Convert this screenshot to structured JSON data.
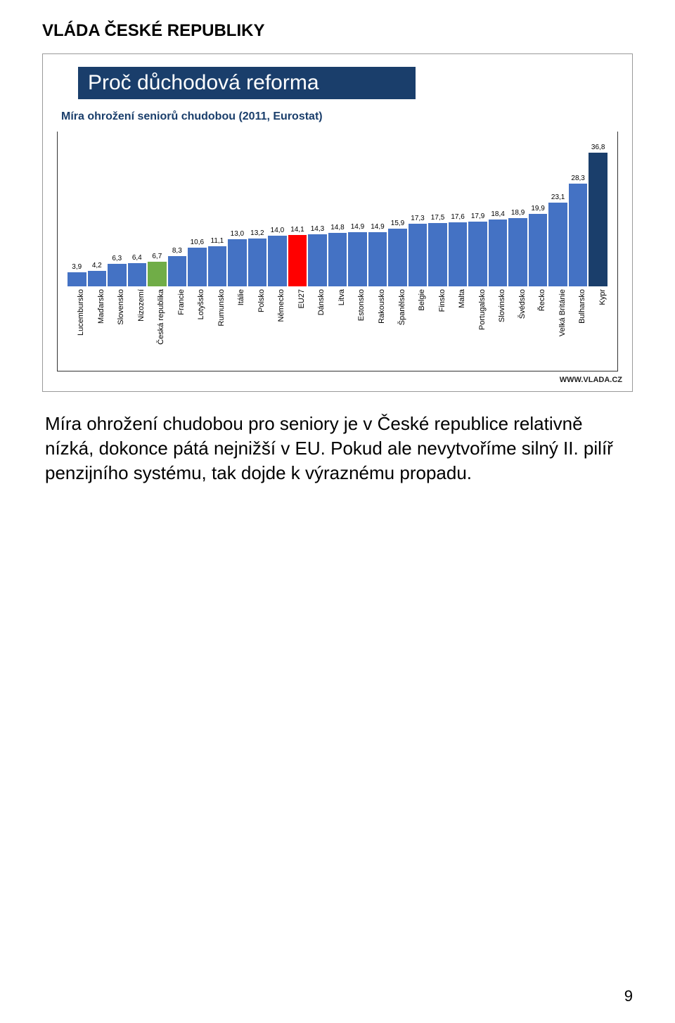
{
  "header": {
    "org": "VLÁDA ČESKÉ REPUBLIKY"
  },
  "subtitle": {
    "text": "Proč důchodová reforma",
    "bg_color": "#1a3e6b",
    "text_color": "#ffffff"
  },
  "chart": {
    "type": "bar",
    "title": "Míra ohrožení seniorů chudobou (2011, Eurostat)",
    "title_color": "#1a3e6b",
    "title_fontsize": 16,
    "background_color": "#ffffff",
    "border_color": "#333333",
    "value_fontsize": 10,
    "label_fontsize": 11,
    "max_value": 38,
    "bars": [
      {
        "label": "Lucembursko",
        "value": 3.9,
        "text": "3,9",
        "color": "#4472c4"
      },
      {
        "label": "Maďarsko",
        "value": 4.2,
        "text": "4,2",
        "color": "#4472c4"
      },
      {
        "label": "Slovensko",
        "value": 6.3,
        "text": "6,3",
        "color": "#4472c4"
      },
      {
        "label": "Nizozemí",
        "value": 6.4,
        "text": "6,4",
        "color": "#4472c4"
      },
      {
        "label": "Česká republika",
        "value": 6.7,
        "text": "6,7",
        "color": "#70ad47"
      },
      {
        "label": "Francie",
        "value": 8.3,
        "text": "8,3",
        "color": "#4472c4"
      },
      {
        "label": "Lotyšsko",
        "value": 10.6,
        "text": "10,6",
        "color": "#4472c4"
      },
      {
        "label": "Rumunsko",
        "value": 11.1,
        "text": "11,1",
        "color": "#4472c4"
      },
      {
        "label": "Itálie",
        "value": 13.0,
        "text": "13,0",
        "color": "#4472c4"
      },
      {
        "label": "Polsko",
        "value": 13.2,
        "text": "13,2",
        "color": "#4472c4"
      },
      {
        "label": "Německo",
        "value": 14.0,
        "text": "14,0",
        "color": "#4472c4"
      },
      {
        "label": "EU27",
        "value": 14.1,
        "text": "14,1",
        "color": "#ff0000"
      },
      {
        "label": "Dánsko",
        "value": 14.3,
        "text": "14,3",
        "color": "#4472c4"
      },
      {
        "label": "Litva",
        "value": 14.8,
        "text": "14,8",
        "color": "#4472c4"
      },
      {
        "label": "Estonsko",
        "value": 14.9,
        "text": "14,9",
        "color": "#4472c4"
      },
      {
        "label": "Rakousko",
        "value": 14.9,
        "text": "14,9",
        "color": "#4472c4"
      },
      {
        "label": "Španělsko",
        "value": 15.9,
        "text": "15,9",
        "color": "#4472c4"
      },
      {
        "label": "Belgie",
        "value": 17.3,
        "text": "17,3",
        "color": "#4472c4"
      },
      {
        "label": "Finsko",
        "value": 17.5,
        "text": "17,5",
        "color": "#4472c4"
      },
      {
        "label": "Malta",
        "value": 17.6,
        "text": "17,6",
        "color": "#4472c4"
      },
      {
        "label": "Portugalsko",
        "value": 17.9,
        "text": "17,9",
        "color": "#4472c4"
      },
      {
        "label": "Slovinsko",
        "value": 18.4,
        "text": "18,4",
        "color": "#4472c4"
      },
      {
        "label": "Švédsko",
        "value": 18.9,
        "text": "18,9",
        "color": "#4472c4"
      },
      {
        "label": "Řecko",
        "value": 19.9,
        "text": "19,9",
        "color": "#4472c4"
      },
      {
        "label": "Velká Británie",
        "value": 23.1,
        "text": "23,1",
        "color": "#4472c4"
      },
      {
        "label": "Bulharsko",
        "value": 28.3,
        "text": "28,3",
        "color": "#4472c4"
      },
      {
        "label": "Kypr",
        "value": 36.8,
        "text": "36,8",
        "color": "#1a3e6b"
      }
    ]
  },
  "footer_url": "WWW.VLADA.CZ",
  "body_paragraph": "Míra ohrožení chudobou pro seniory je v České republice relativně nízká, dokonce pátá nejnižší v EU. Pokud ale nevytvoříme silný II. pilíř penzijního systému, tak dojde k výraznému propadu.",
  "page_number": "9"
}
